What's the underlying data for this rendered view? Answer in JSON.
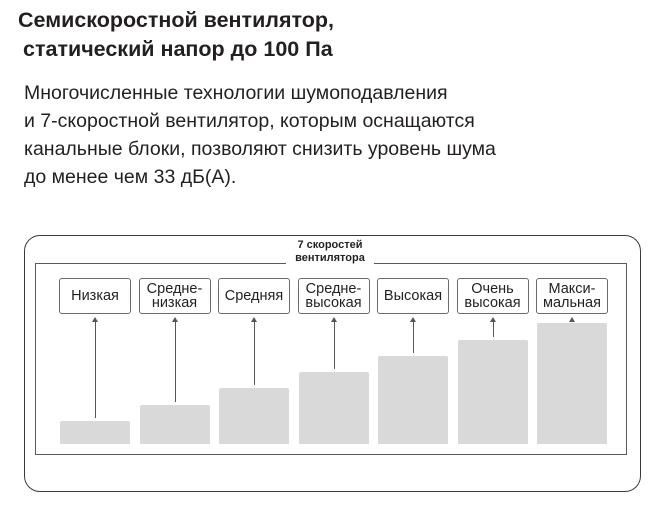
{
  "heading": {
    "line1": "Семискоростной вентилятор,",
    "line2": "статический напор до 100 Па"
  },
  "description": {
    "line1": "Многочисленные технологии шумоподавления",
    "line2": "и 7-скоростной вентилятор, которым оснащаются",
    "line3": "канальные блоки, позволяют снизить уровень шума",
    "line4": "до менее чем 33 дБ(А)."
  },
  "diagram": {
    "title_line1": "7 скоростей",
    "title_line2": "вентилятора",
    "bar_color": "#d9d9d9",
    "speeds": [
      {
        "label": "Низкая",
        "level": 1
      },
      {
        "label": "Средне-\nнизкая",
        "level": 2
      },
      {
        "label": "Средняя",
        "level": 3
      },
      {
        "label": "Средне-\nвысокая",
        "level": 4
      },
      {
        "label": "Высокая",
        "level": 5
      },
      {
        "label": "Очень\nвысокая",
        "level": 6
      },
      {
        "label": "Макси-\nмальная",
        "level": 7
      }
    ]
  }
}
